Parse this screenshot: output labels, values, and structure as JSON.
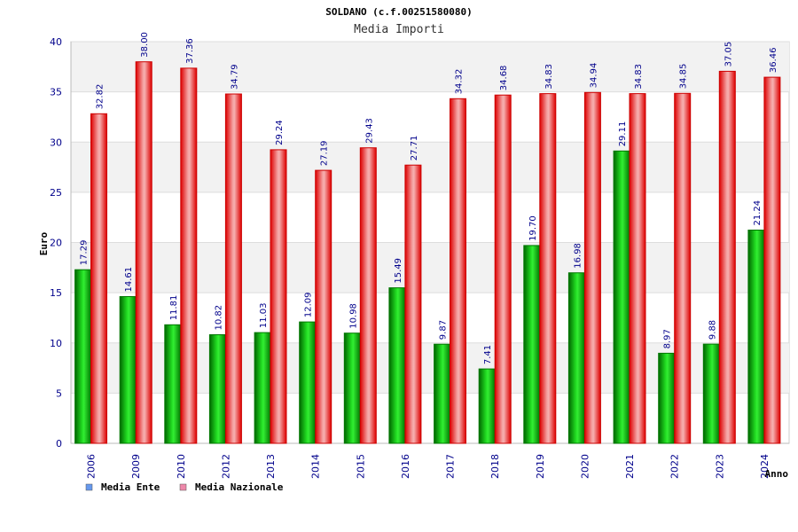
{
  "chart_data": {
    "type": "bar",
    "title": "SOLDANO (c.f.00251580080)",
    "subtitle": "Media Importi",
    "xlabel": "Anno",
    "ylabel": "Euro",
    "ylim": [
      0,
      40
    ],
    "yticks": [
      0,
      5,
      10,
      15,
      20,
      25,
      30,
      35,
      40
    ],
    "grid": true,
    "legend_position": "bottom-left",
    "categories": [
      "2006",
      "2009",
      "2010",
      "2012",
      "2013",
      "2014",
      "2015",
      "2016",
      "2017",
      "2018",
      "2019",
      "2020",
      "2021",
      "2022",
      "2023",
      "2024"
    ],
    "series": [
      {
        "name": "Media Ente",
        "color": "#00aa00",
        "legend_color": "#6699ee",
        "values": [
          17.29,
          14.61,
          11.81,
          10.82,
          11.03,
          12.09,
          10.98,
          15.49,
          9.87,
          7.41,
          19.7,
          16.98,
          29.11,
          8.97,
          9.88,
          21.24
        ],
        "labels": [
          "17.29",
          "14.61",
          "11.81",
          "10.82",
          "11.03",
          "12.09",
          "10.98",
          "15.49",
          "9.87",
          "7.41",
          "19.70",
          "16.98",
          "29.11",
          "8.97",
          "9.88",
          "21.24"
        ]
      },
      {
        "name": "Media Nazionale",
        "color": "#ee1111",
        "legend_color": "#ee88aa",
        "values": [
          32.82,
          38.0,
          37.36,
          34.79,
          29.24,
          27.19,
          29.43,
          27.71,
          34.32,
          34.68,
          34.83,
          34.94,
          34.83,
          34.85,
          37.05,
          36.46
        ],
        "labels": [
          "32.82",
          "38.00",
          "37.36",
          "34.79",
          "29.24",
          "27.19",
          "29.43",
          "27.71",
          "34.32",
          "34.68",
          "34.83",
          "34.94",
          "34.83",
          "34.85",
          "37.05",
          "36.46"
        ]
      }
    ]
  }
}
